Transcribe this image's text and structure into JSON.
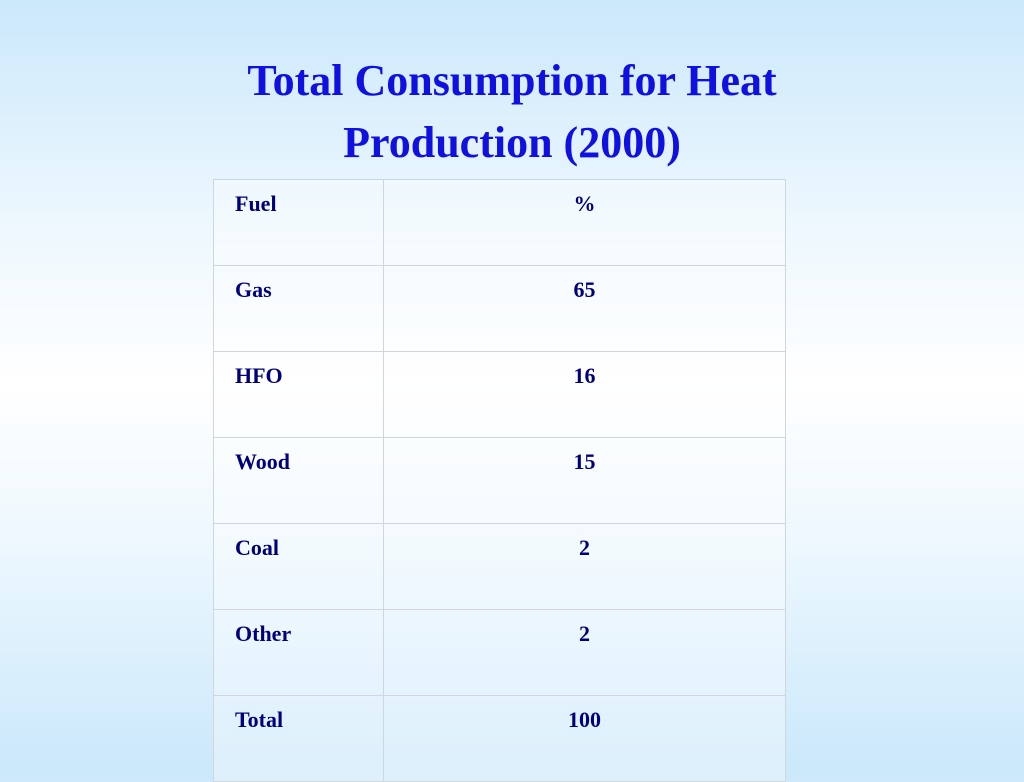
{
  "header": {
    "title": "Total Consumption for Heat Production (2000)"
  },
  "table": {
    "columns": [
      "Fuel",
      "%"
    ],
    "rows": [
      [
        "Gas",
        65
      ],
      [
        "HFO",
        16
      ],
      [
        "Wood",
        15
      ],
      [
        "Coal",
        2
      ],
      [
        "Other",
        2
      ],
      [
        "Total",
        100
      ]
    ]
  }
}
